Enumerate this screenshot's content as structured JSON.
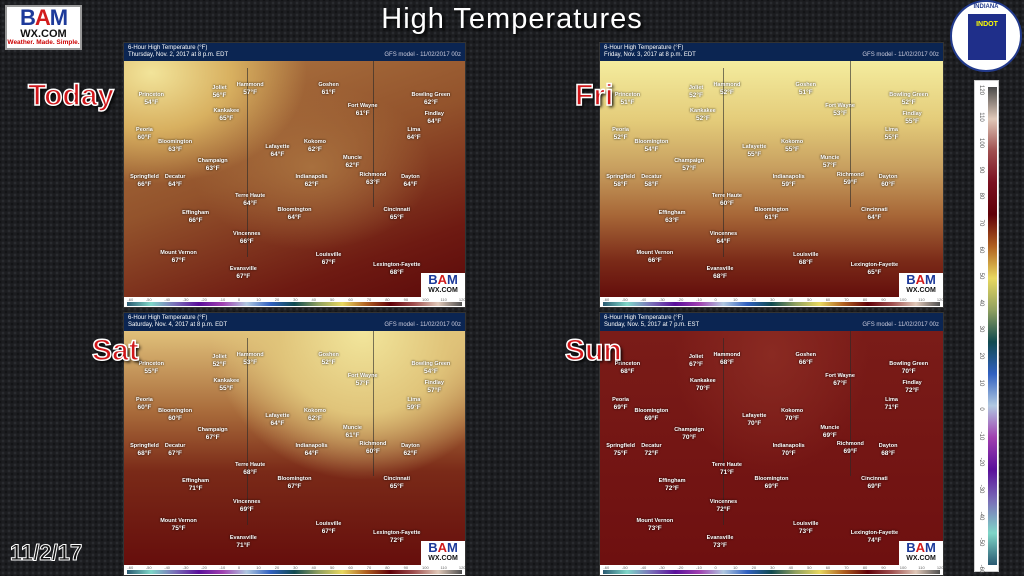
{
  "title": "High Temperatures",
  "date_label": "11/2/17",
  "logo": {
    "text": "BAM WX.COM",
    "tagline": "Weather. Made. Simple."
  },
  "seal": {
    "text": "INDIANA DEPARTMENT OF TRANSPORTATION",
    "inner": "INDOT"
  },
  "scale": {
    "unit": "°F",
    "ticks": [
      "-60",
      "-50",
      "-40",
      "-30",
      "-20",
      "-10",
      "0",
      "10",
      "20",
      "30",
      "40",
      "50",
      "60",
      "70",
      "80",
      "90",
      "100",
      "110",
      "120"
    ]
  },
  "colors": {
    "day_label": "#d0161a",
    "header": "#0b2552"
  },
  "cities": [
    "Princeton",
    "Joliet",
    "Hammond",
    "Goshen",
    "Kankakee",
    "Bowling Green",
    "Fort Wayne",
    "Findlay",
    "Lima",
    "Peoria",
    "Bloomington",
    "Lafayette",
    "Kokomo",
    "Muncie",
    "Champaign",
    "Springfield",
    "Decatur",
    "Indianapolis",
    "Richmond",
    "Dayton",
    "Terre Haute",
    "Bloomington",
    "Effingham",
    "Cincinnati",
    "Vincennes",
    "Mount Vernon",
    "Louisville",
    "Evansville",
    "Lexington-Fayette"
  ],
  "panels": [
    {
      "day": "Today",
      "title": "6-Hour High Temperature (°F)",
      "valid": "Thursday, Nov. 2, 2017 at 8 p.m. EDT",
      "model": "GFS model - 11/02/2017 00z",
      "temps": [
        "54°F",
        "56°F",
        "57°F",
        "61°F",
        "65°F",
        "62°F",
        "61°F",
        "64°F",
        "64°F",
        "60°F",
        "63°F",
        "64°F",
        "62°F",
        "62°F",
        "63°F",
        "66°F",
        "64°F",
        "62°F",
        "63°F",
        "64°F",
        "64°F",
        "64°F",
        "66°F",
        "65°F",
        "66°F",
        "67°F",
        "67°F",
        "67°F",
        "68°F"
      ]
    },
    {
      "day": "Fri",
      "title": "6-Hour High Temperature (°F)",
      "valid": "Friday, Nov. 3, 2017 at 8 p.m. EDT",
      "model": "GFS model - 11/02/2017 00z",
      "temps": [
        "51°F",
        "52°F",
        "52°F",
        "51°F",
        "52°F",
        "52°F",
        "53°F",
        "55°F",
        "55°F",
        "52°F",
        "54°F",
        "55°F",
        "55°F",
        "57°F",
        "57°F",
        "58°F",
        "58°F",
        "59°F",
        "59°F",
        "60°F",
        "60°F",
        "61°F",
        "63°F",
        "64°F",
        "64°F",
        "66°F",
        "68°F",
        "68°F",
        "65°F"
      ]
    },
    {
      "day": "Sat",
      "title": "6-Hour High Temperature (°F)",
      "valid": "Saturday, Nov. 4, 2017 at 8 p.m. EDT",
      "model": "GFS model - 11/02/2017 00z",
      "temps": [
        "55°F",
        "52°F",
        "53°F",
        "52°F",
        "55°F",
        "54°F",
        "57°F",
        "57°F",
        "59°F",
        "60°F",
        "60°F",
        "64°F",
        "62°F",
        "61°F",
        "67°F",
        "68°F",
        "67°F",
        "64°F",
        "60°F",
        "62°F",
        "68°F",
        "67°F",
        "71°F",
        "65°F",
        "69°F",
        "75°F",
        "67°F",
        "71°F",
        "72°F"
      ]
    },
    {
      "day": "Sun",
      "title": "6-Hour High Temperature (°F)",
      "valid": "Sunday, Nov. 5, 2017 at 7 p.m. EST",
      "model": "GFS model - 11/02/2017 00z",
      "temps": [
        "68°F",
        "67°F",
        "68°F",
        "66°F",
        "70°F",
        "70°F",
        "67°F",
        "72°F",
        "71°F",
        "69°F",
        "69°F",
        "70°F",
        "70°F",
        "69°F",
        "70°F",
        "75°F",
        "72°F",
        "70°F",
        "69°F",
        "68°F",
        "71°F",
        "69°F",
        "72°F",
        "69°F",
        "72°F",
        "73°F",
        "73°F",
        "73°F",
        "74°F"
      ]
    }
  ]
}
